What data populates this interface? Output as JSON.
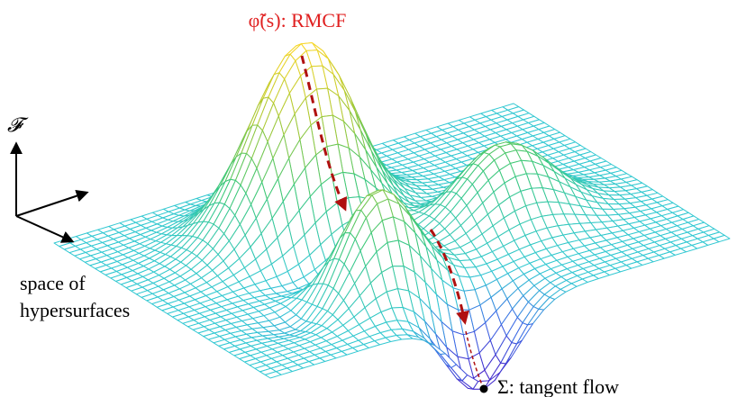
{
  "labels": {
    "curve": "φ̃(s): RMCF",
    "axis": "𝓕",
    "space": [
      "space of",
      "hypersurfaces"
    ],
    "endpoint": "Σ: tangent flow"
  }
}
